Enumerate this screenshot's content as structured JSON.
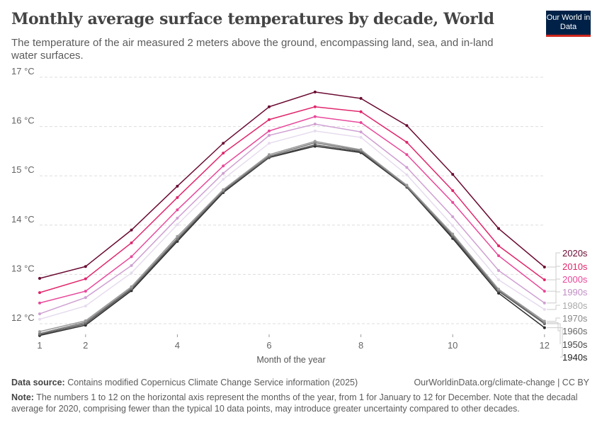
{
  "header": {
    "title": "Monthly average surface temperatures by decade, World",
    "subtitle": "The temperature of the air measured 2 meters above the ground, encompassing land, sea, and in-land water surfaces.",
    "logo": "Our World in Data"
  },
  "chart_data": {
    "type": "line",
    "xlabel": "Month of the year",
    "ylabel": "",
    "x": [
      1,
      2,
      3,
      4,
      5,
      6,
      7,
      8,
      9,
      10,
      11,
      12
    ],
    "xticks": [
      "1",
      "2",
      "4",
      "6",
      "8",
      "10",
      "12"
    ],
    "xtick_values": [
      1,
      2,
      4,
      6,
      8,
      10,
      12
    ],
    "yticks": [
      "12 °C",
      "13 °C",
      "14 °C",
      "15 °C",
      "16 °C",
      "17 °C"
    ],
    "ytick_values": [
      12,
      13,
      14,
      15,
      16,
      17
    ],
    "ylim": [
      11.7,
      17
    ],
    "grid": "horizontal dashed",
    "legend": "right, labels at line ends",
    "series": [
      {
        "name": "2020s",
        "color": "#6a0a32",
        "label_color": "#6a0a32",
        "values": [
          12.92,
          13.16,
          13.9,
          14.79,
          15.66,
          16.4,
          16.7,
          16.57,
          16.02,
          15.03,
          13.93,
          13.15
        ]
      },
      {
        "name": "2010s",
        "color": "#e0266c",
        "label_color": "#e0266c",
        "values": [
          12.63,
          12.91,
          13.64,
          14.56,
          15.46,
          16.14,
          16.4,
          16.3,
          15.68,
          14.7,
          13.58,
          12.89
        ]
      },
      {
        "name": "2000s",
        "color": "#e8489a",
        "label_color": "#e8489a",
        "values": [
          12.42,
          12.66,
          13.36,
          14.31,
          15.2,
          15.91,
          16.2,
          16.08,
          15.43,
          14.46,
          13.38,
          12.66
        ]
      },
      {
        "name": "1990s",
        "color": "#cfa0d2",
        "label_color": "#c08ec4",
        "values": [
          12.2,
          12.53,
          13.18,
          14.14,
          15.05,
          15.82,
          16.05,
          15.89,
          15.17,
          14.17,
          13.08,
          12.42
        ]
      },
      {
        "name": "1980s",
        "color": "#e6dcee",
        "label_color": "#aaaaaa",
        "values": [
          12.09,
          12.36,
          13.03,
          14.01,
          14.93,
          15.66,
          15.91,
          15.78,
          15.02,
          13.99,
          12.89,
          12.29
        ]
      },
      {
        "name": "1970s",
        "color": "#9a9a9a",
        "label_color": "#888888",
        "values": [
          11.84,
          12.06,
          12.75,
          13.77,
          14.72,
          15.43,
          15.7,
          15.53,
          14.81,
          13.82,
          12.7,
          12.05
        ]
      },
      {
        "name": "1960s",
        "color": "#7a7a7a",
        "label_color": "#666666",
        "values": [
          11.8,
          12.03,
          12.72,
          13.73,
          14.7,
          15.4,
          15.67,
          15.51,
          14.79,
          13.79,
          12.68,
          12.02
        ]
      },
      {
        "name": "1950s",
        "color": "#555555",
        "label_color": "#444444",
        "values": [
          11.78,
          12.0,
          12.7,
          13.7,
          14.68,
          15.38,
          15.63,
          15.49,
          14.78,
          13.76,
          12.66,
          12.0
        ]
      },
      {
        "name": "1940s",
        "color": "#2a2a2a",
        "label_color": "#222222",
        "values": [
          11.76,
          11.97,
          12.67,
          13.67,
          14.66,
          15.37,
          15.6,
          15.47,
          14.77,
          13.73,
          12.62,
          11.92
        ]
      }
    ]
  },
  "footer": {
    "source_label": "Data source:",
    "source_text": "Contains modified Copernicus Climate Change Service information (2025)",
    "url": "OurWorldinData.org/climate-change | CC BY",
    "note_label": "Note:",
    "note_text": "The numbers 1 to 12 on the horizontal axis represent the months of the year, from 1 for January to 12 for December. Note that the decadal average for 2020, comprising fewer than the typical 10 data points, may introduce greater uncertainty compared to other decades."
  }
}
